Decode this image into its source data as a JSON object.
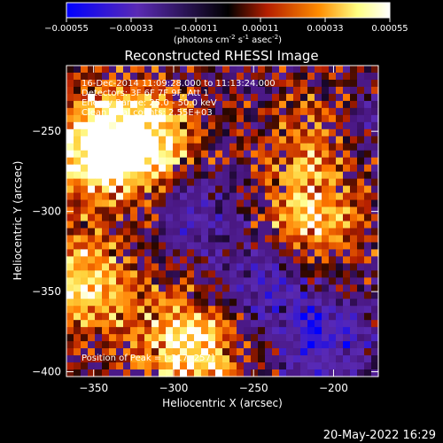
{
  "colorbar": {
    "ticks": [
      "-0.00055",
      "-0.00033",
      "-0.00011",
      "0.00011",
      "0.00033",
      "0.00055"
    ],
    "units_text": "(photons cm",
    "units_sup1": "-2",
    "units_mid": " s",
    "units_sup2": "-1",
    "units_mid2": " asec",
    "units_sup3": "-2",
    "units_end": ")",
    "range": [
      -0.00055,
      0.00055
    ]
  },
  "chart_data": {
    "type": "heatmap",
    "title": "Reconstructed RHESSI Image",
    "xlabel": "Heliocentric X (arcsec)",
    "ylabel": "Heliocentric Y (arcsec)",
    "xlim": [
      -367,
      -172
    ],
    "ylim": [
      -403,
      -209
    ],
    "x_ticks": [
      -350,
      -300,
      -250,
      -200
    ],
    "y_ticks": [
      -250,
      -300,
      -350,
      -400
    ],
    "x_tick_labels": [
      "−350",
      "−300",
      "−250",
      "−200"
    ],
    "y_tick_labels": [
      "−250",
      "−300",
      "−350",
      "−400"
    ],
    "annotations": [
      "16-Dec-2014 11:09:28.000 to 11:13:24.000",
      "Detectors: 3F 6F 7F 9F, Att 1",
      "Energy Range: 25.0 - 50.0 keV",
      "Clean     Total counts: 2.55E+03"
    ],
    "peak_text": "Position of Peak = [-317,-257]",
    "peak_position": [
      -317,
      -257
    ],
    "grid": false,
    "colormap": [
      "#0000ff",
      "#5a2ab4",
      "#000000",
      "#b41e00",
      "#ff8c00",
      "#ffff82",
      "#ffffff"
    ],
    "hot_regions": [
      {
        "x": -350,
        "y": -260,
        "level": 0.95
      },
      {
        "x": -318,
        "y": -257,
        "level": 1.0
      },
      {
        "x": -355,
        "y": -345,
        "level": 0.85
      },
      {
        "x": -290,
        "y": -385,
        "level": 0.95
      },
      {
        "x": -215,
        "y": -305,
        "level": 0.75
      },
      {
        "x": -205,
        "y": -255,
        "level": 0.6
      }
    ],
    "cold_regions": [
      {
        "x": -285,
        "y": -300,
        "level": -0.55
      },
      {
        "x": -240,
        "y": -345,
        "level": -0.6
      },
      {
        "x": -205,
        "y": -380,
        "level": -0.7
      },
      {
        "x": -185,
        "y": -250,
        "level": -0.5
      }
    ]
  },
  "footer": {
    "timestamp": "20-May-2022 16:29"
  }
}
